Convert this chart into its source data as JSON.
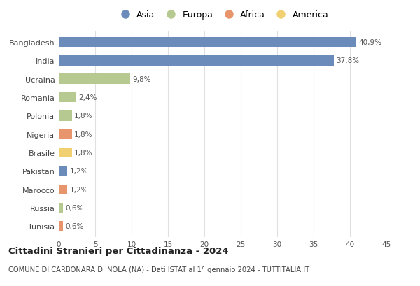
{
  "countries": [
    "Bangladesh",
    "India",
    "Ucraina",
    "Romania",
    "Polonia",
    "Nigeria",
    "Brasile",
    "Pakistan",
    "Marocco",
    "Russia",
    "Tunisia"
  ],
  "values": [
    40.9,
    37.8,
    9.8,
    2.4,
    1.8,
    1.8,
    1.8,
    1.2,
    1.2,
    0.6,
    0.6
  ],
  "labels": [
    "40,9%",
    "37,8%",
    "9,8%",
    "2,4%",
    "1,8%",
    "1,8%",
    "1,8%",
    "1,2%",
    "1,2%",
    "0,6%",
    "0,6%"
  ],
  "continents": [
    "Asia",
    "Asia",
    "Europa",
    "Europa",
    "Europa",
    "Africa",
    "America",
    "Asia",
    "Africa",
    "Europa",
    "Africa"
  ],
  "bar_colors": [
    "#6b8cba",
    "#6b8cba",
    "#b5c990",
    "#b5c990",
    "#b5c990",
    "#e8956d",
    "#f0d070",
    "#6b8cba",
    "#e8956d",
    "#b5c990",
    "#e8956d"
  ],
  "xlim": [
    0,
    45
  ],
  "xticks": [
    0,
    5,
    10,
    15,
    20,
    25,
    30,
    35,
    40,
    45
  ],
  "title": "Cittadini Stranieri per Cittadinanza - 2024",
  "subtitle": "COMUNE DI CARBONARA DI NOLA (NA) - Dati ISTAT al 1° gennaio 2024 - TUTTITALIA.IT",
  "legend_labels": [
    "Asia",
    "Europa",
    "Africa",
    "America"
  ],
  "legend_colors": [
    "#6b8cba",
    "#b5c990",
    "#e8956d",
    "#f0d070"
  ],
  "bg_color": "#ffffff",
  "grid_color": "#e0e0e0"
}
